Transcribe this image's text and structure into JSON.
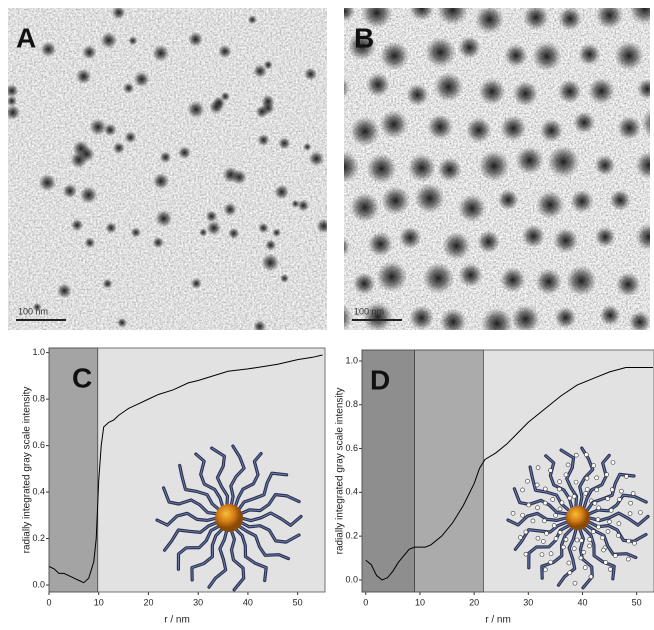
{
  "panels": [
    {
      "label": "A",
      "scale_bar": "100 nm"
    },
    {
      "label": "B",
      "scale_bar": "100 nm"
    }
  ],
  "chart_data": [
    {
      "type": "line",
      "label": "C",
      "y_label": "radially integrated gray scale intensity",
      "x_label": "r / nm",
      "xlim": [
        0,
        55.5
      ],
      "ylim": [
        -0.03,
        1.02
      ],
      "xticks": [
        0,
        10,
        20,
        30,
        40,
        50
      ],
      "yticks": [
        {
          "value": 0,
          "label": "0.0"
        },
        0.2,
        0.4,
        0.6,
        0.8,
        {
          "value": 1,
          "label": "1.0"
        }
      ],
      "regions": [
        {
          "from": 0,
          "to": 9.8,
          "color": "#a4a4a4"
        }
      ],
      "x": [
        0,
        1,
        2,
        3,
        4,
        5,
        6,
        7,
        8,
        9,
        9.5,
        10,
        10.5,
        11,
        12,
        13,
        14,
        16,
        18,
        20,
        22,
        25,
        28,
        30,
        33,
        36,
        40,
        43,
        46,
        50,
        53,
        55
      ],
      "series": [
        {
          "color": "#000000",
          "values": [
            0.08,
            0.07,
            0.05,
            0.05,
            0.04,
            0.03,
            0.02,
            0.01,
            0.03,
            0.1,
            0.2,
            0.45,
            0.6,
            0.68,
            0.7,
            0.71,
            0.73,
            0.76,
            0.78,
            0.8,
            0.82,
            0.84,
            0.87,
            0.88,
            0.9,
            0.92,
            0.93,
            0.94,
            0.95,
            0.97,
            0.98,
            0.99
          ]
        }
      ]
    },
    {
      "type": "line",
      "label": "D",
      "y_label": "radially integrated gray scale intensity",
      "x_label": "r / nm",
      "xlim": [
        -0.7,
        53.2
      ],
      "ylim": [
        -0.055,
        1.05
      ],
      "xticks": [
        0,
        10,
        20,
        30,
        40,
        50
      ],
      "yticks": [
        {
          "value": 0,
          "label": "0.0"
        },
        0.2,
        0.4,
        0.6,
        0.8,
        {
          "value": 1,
          "label": "1.0"
        }
      ],
      "regions": [
        {
          "from": -0.7,
          "to": 9,
          "color": "#8e8e8e"
        },
        {
          "from": 9,
          "to": 21.7,
          "color": "#ababab"
        }
      ],
      "x": [
        0,
        1,
        2,
        3,
        4,
        5,
        6,
        7,
        8,
        9,
        10,
        11,
        12,
        14,
        16,
        18,
        20,
        21,
        22,
        24,
        26,
        28,
        30,
        33,
        36,
        39,
        42,
        45,
        48,
        50,
        53
      ],
      "series": [
        {
          "color": "#000000",
          "values": [
            0.09,
            0.07,
            0.02,
            0.0,
            0.01,
            0.04,
            0.08,
            0.11,
            0.14,
            0.15,
            0.15,
            0.15,
            0.16,
            0.2,
            0.26,
            0.34,
            0.44,
            0.51,
            0.55,
            0.58,
            0.62,
            0.67,
            0.72,
            0.78,
            0.84,
            0.89,
            0.92,
            0.95,
            0.97,
            0.97,
            0.97
          ]
        }
      ]
    }
  ]
}
